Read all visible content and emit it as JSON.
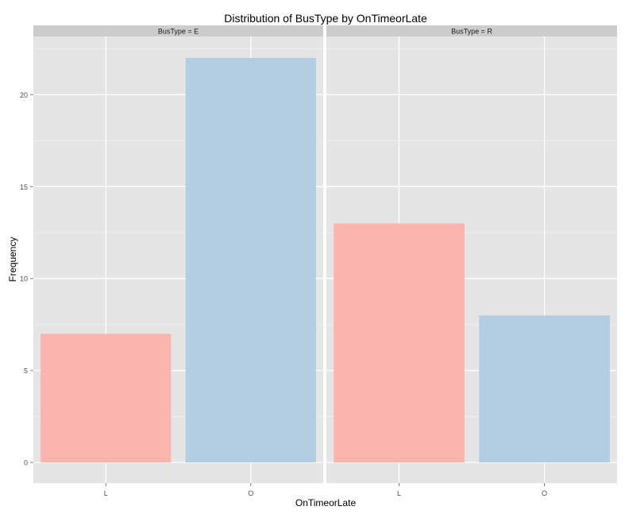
{
  "chart_data": {
    "type": "bar",
    "title": "Distribution of BusType by OnTimeorLate",
    "xlabel": "OnTimeorLate",
    "ylabel": "Frequency",
    "categories": [
      "L",
      "O"
    ],
    "facet_variable": "BusType",
    "ylim": [
      0,
      23
    ],
    "yticks": [
      0,
      5,
      10,
      15,
      20
    ],
    "grid": true,
    "colors": {
      "L": "#fbb4ae",
      "O": "#b3cde3",
      "panel": "#e5e5e5",
      "strip": "#cccccc",
      "grid": "#ffffff"
    },
    "panels": [
      {
        "label": "BusType = E",
        "values": [
          7,
          22
        ]
      },
      {
        "label": "BusType = R",
        "values": [
          13,
          8
        ]
      }
    ]
  }
}
